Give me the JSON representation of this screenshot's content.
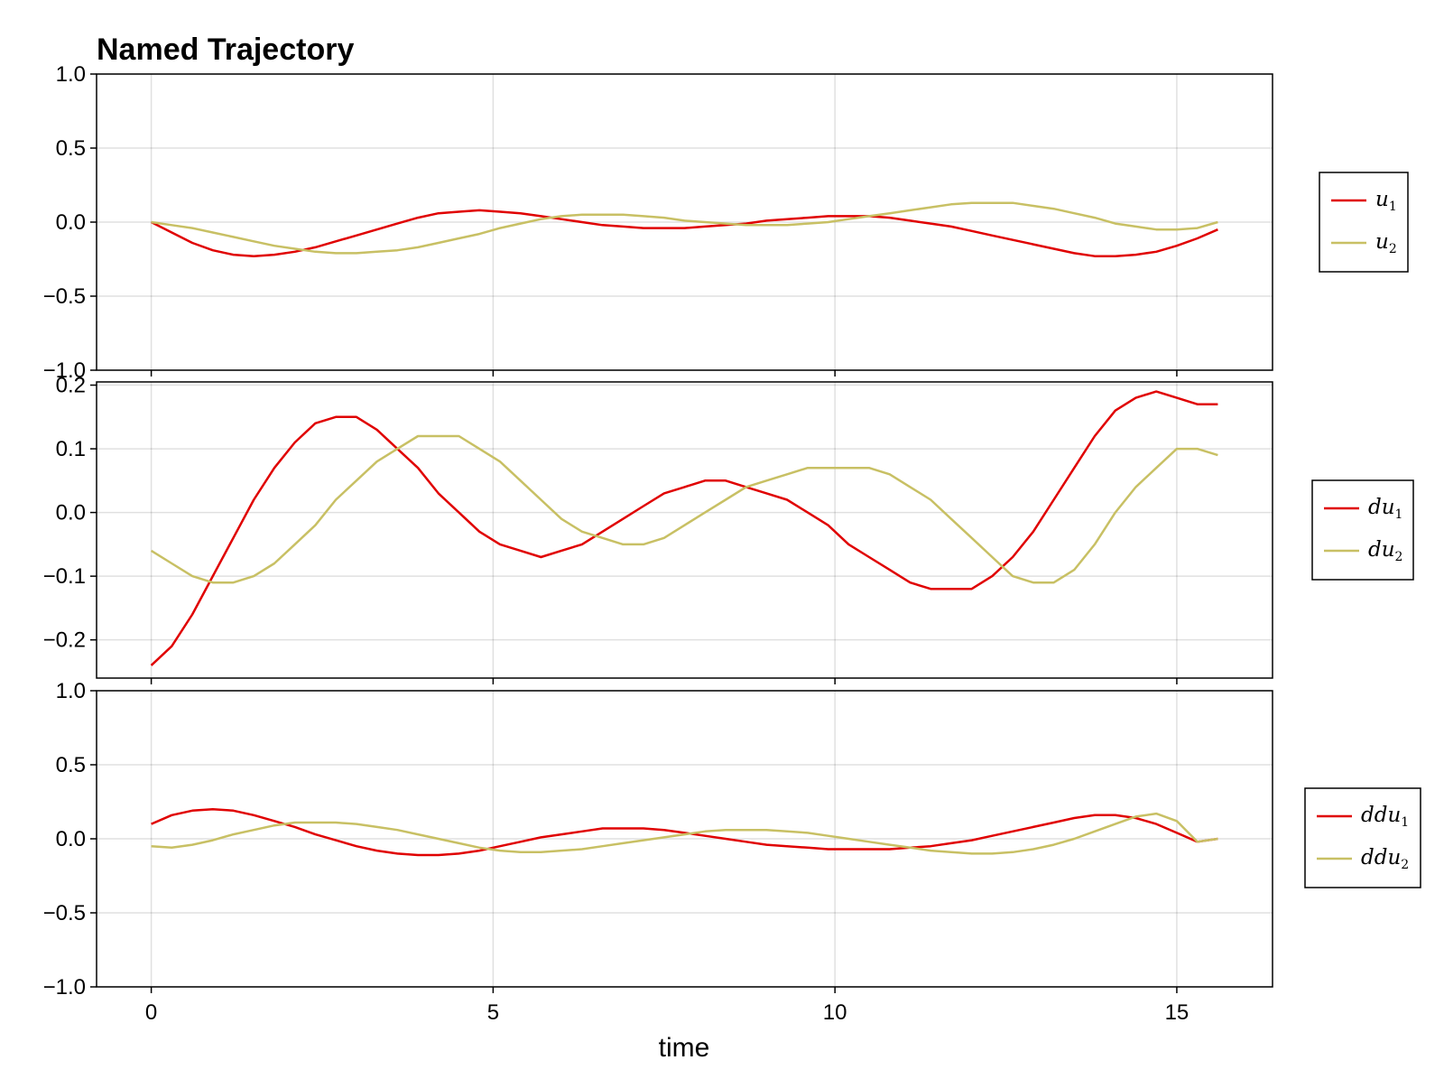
{
  "chart_data": {
    "type": "line",
    "title": "Named Trajectory",
    "xlabel": "time",
    "x_ticks": [
      0,
      5,
      10,
      15
    ],
    "xlim": [
      -0.8,
      16.4
    ],
    "grid": true,
    "legend_placement": "right",
    "colors": {
      "series1": "#e00000",
      "series2": "#c8c064"
    },
    "x": [
      0.0,
      0.3,
      0.6,
      0.9,
      1.2,
      1.5,
      1.8,
      2.1,
      2.4,
      2.7,
      3.0,
      3.3,
      3.6,
      3.9,
      4.2,
      4.5,
      4.8,
      5.1,
      5.4,
      5.7,
      6.0,
      6.3,
      6.6,
      6.9,
      7.2,
      7.5,
      7.8,
      8.1,
      8.4,
      8.7,
      9.0,
      9.3,
      9.6,
      9.9,
      10.2,
      10.5,
      10.8,
      11.1,
      11.4,
      11.7,
      12.0,
      12.3,
      12.6,
      12.9,
      13.2,
      13.5,
      13.8,
      14.1,
      14.4,
      14.7,
      15.0,
      15.3,
      15.6
    ],
    "panels": [
      {
        "ylim": [
          -1.0,
          1.0
        ],
        "y_ticks": [
          "1.0",
          "0.5",
          "0.0",
          "−0.5",
          "−1.0"
        ],
        "series": [
          {
            "base": "u",
            "sub": "1",
            "color": "#e00000",
            "values": [
              0.0,
              -0.07,
              -0.14,
              -0.19,
              -0.22,
              -0.23,
              -0.22,
              -0.2,
              -0.17,
              -0.13,
              -0.09,
              -0.05,
              -0.01,
              0.03,
              0.06,
              0.07,
              0.08,
              0.07,
              0.06,
              0.04,
              0.02,
              0.0,
              -0.02,
              -0.03,
              -0.04,
              -0.04,
              -0.04,
              -0.03,
              -0.02,
              -0.01,
              0.01,
              0.02,
              0.03,
              0.04,
              0.04,
              0.04,
              0.03,
              0.01,
              -0.01,
              -0.03,
              -0.06,
              -0.09,
              -0.12,
              -0.15,
              -0.18,
              -0.21,
              -0.23,
              -0.23,
              -0.22,
              -0.2,
              -0.16,
              -0.11,
              -0.05
            ]
          },
          {
            "base": "u",
            "sub": "2",
            "color": "#c8c064",
            "values": [
              0.0,
              -0.02,
              -0.04,
              -0.07,
              -0.1,
              -0.13,
              -0.16,
              -0.18,
              -0.2,
              -0.21,
              -0.21,
              -0.2,
              -0.19,
              -0.17,
              -0.14,
              -0.11,
              -0.08,
              -0.04,
              -0.01,
              0.02,
              0.04,
              0.05,
              0.05,
              0.05,
              0.04,
              0.03,
              0.01,
              0.0,
              -0.01,
              -0.02,
              -0.02,
              -0.02,
              -0.01,
              0.0,
              0.02,
              0.04,
              0.06,
              0.08,
              0.1,
              0.12,
              0.13,
              0.13,
              0.13,
              0.11,
              0.09,
              0.06,
              0.03,
              -0.01,
              -0.03,
              -0.05,
              -0.05,
              -0.04,
              0.0
            ]
          }
        ]
      },
      {
        "ylim": [
          -0.26,
          0.205
        ],
        "y_tick_values": [
          0.2,
          0.1,
          0.0,
          -0.1,
          -0.2
        ],
        "y_ticks": [
          "0.2",
          "0.1",
          "0.0",
          "−0.1",
          "−0.2"
        ],
        "series": [
          {
            "base": "du",
            "sub": "1",
            "color": "#e00000",
            "values": [
              -0.24,
              -0.21,
              -0.16,
              -0.1,
              -0.04,
              0.02,
              0.07,
              0.11,
              0.14,
              0.15,
              0.15,
              0.13,
              0.1,
              0.07,
              0.03,
              0.0,
              -0.03,
              -0.05,
              -0.06,
              -0.07,
              -0.06,
              -0.05,
              -0.03,
              -0.01,
              0.01,
              0.03,
              0.04,
              0.05,
              0.05,
              0.04,
              0.03,
              0.02,
              0.0,
              -0.02,
              -0.05,
              -0.07,
              -0.09,
              -0.11,
              -0.12,
              -0.12,
              -0.12,
              -0.1,
              -0.07,
              -0.03,
              0.02,
              0.07,
              0.12,
              0.16,
              0.18,
              0.19,
              0.18,
              0.17,
              0.17
            ]
          },
          {
            "base": "du",
            "sub": "2",
            "color": "#c8c064",
            "values": [
              -0.06,
              -0.08,
              -0.1,
              -0.11,
              -0.11,
              -0.1,
              -0.08,
              -0.05,
              -0.02,
              0.02,
              0.05,
              0.08,
              0.1,
              0.12,
              0.12,
              0.12,
              0.1,
              0.08,
              0.05,
              0.02,
              -0.01,
              -0.03,
              -0.04,
              -0.05,
              -0.05,
              -0.04,
              -0.02,
              0.0,
              0.02,
              0.04,
              0.05,
              0.06,
              0.07,
              0.07,
              0.07,
              0.07,
              0.06,
              0.04,
              0.02,
              -0.01,
              -0.04,
              -0.07,
              -0.1,
              -0.11,
              -0.11,
              -0.09,
              -0.05,
              0.0,
              0.04,
              0.07,
              0.1,
              0.1,
              0.09
            ]
          }
        ]
      },
      {
        "ylim": [
          -1.0,
          1.0
        ],
        "y_ticks": [
          "1.0",
          "0.5",
          "0.0",
          "−0.5",
          "−1.0"
        ],
        "series": [
          {
            "base": "ddu",
            "sub": "1",
            "color": "#e00000",
            "values": [
              0.1,
              0.16,
              0.19,
              0.2,
              0.19,
              0.16,
              0.12,
              0.08,
              0.03,
              -0.01,
              -0.05,
              -0.08,
              -0.1,
              -0.11,
              -0.11,
              -0.1,
              -0.08,
              -0.05,
              -0.02,
              0.01,
              0.03,
              0.05,
              0.07,
              0.07,
              0.07,
              0.06,
              0.04,
              0.02,
              0.0,
              -0.02,
              -0.04,
              -0.05,
              -0.06,
              -0.07,
              -0.07,
              -0.07,
              -0.07,
              -0.06,
              -0.05,
              -0.03,
              -0.01,
              0.02,
              0.05,
              0.08,
              0.11,
              0.14,
              0.16,
              0.16,
              0.14,
              0.1,
              0.04,
              -0.02,
              0.0
            ]
          },
          {
            "base": "ddu",
            "sub": "2",
            "color": "#c8c064",
            "values": [
              -0.05,
              -0.06,
              -0.04,
              -0.01,
              0.03,
              0.06,
              0.09,
              0.11,
              0.11,
              0.11,
              0.1,
              0.08,
              0.06,
              0.03,
              0.0,
              -0.03,
              -0.06,
              -0.08,
              -0.09,
              -0.09,
              -0.08,
              -0.07,
              -0.05,
              -0.03,
              -0.01,
              0.01,
              0.03,
              0.05,
              0.06,
              0.06,
              0.06,
              0.05,
              0.04,
              0.02,
              0.0,
              -0.02,
              -0.04,
              -0.06,
              -0.08,
              -0.09,
              -0.1,
              -0.1,
              -0.09,
              -0.07,
              -0.04,
              0.0,
              0.05,
              0.1,
              0.15,
              0.17,
              0.12,
              -0.02,
              0.0
            ]
          }
        ]
      }
    ]
  }
}
